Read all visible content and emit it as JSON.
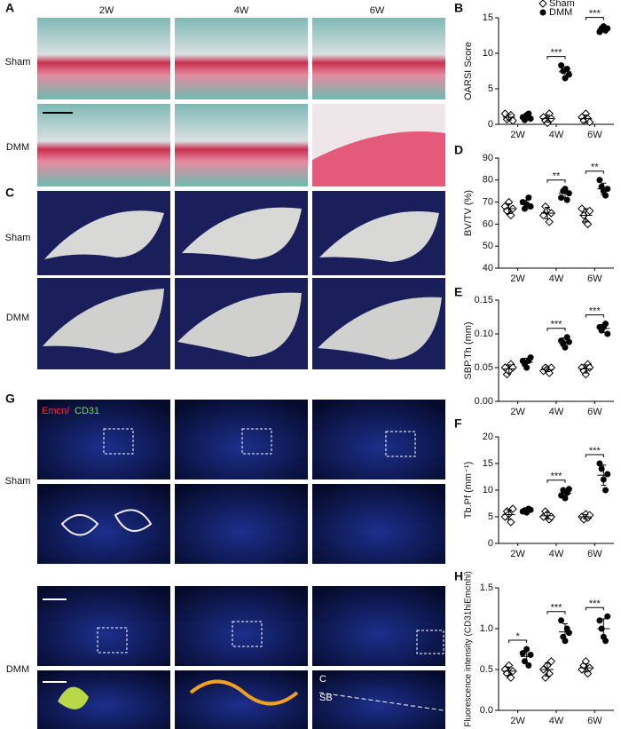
{
  "panel_labels": {
    "A": "A",
    "B": "B",
    "C": "C",
    "D": "D",
    "E": "E",
    "F": "F",
    "G": "G",
    "H": "H"
  },
  "column_labels": [
    "2W",
    "4W",
    "6W"
  ],
  "row_labels": {
    "a_sham": "Sham",
    "a_dmm": "DMM",
    "c_sham": "Sham",
    "c_dmm": "DMM",
    "g_sham": "Sham",
    "g_dmm": "DMM"
  },
  "stain_label": {
    "emcn": "Emcn/",
    "cd31": "CD31"
  },
  "image_labels": {
    "c": "C",
    "sb": "SB"
  },
  "chart_data": [
    {
      "type": "dot",
      "panel": "B",
      "ylabel": "OARSI Score",
      "categories": [
        "2W",
        "4W",
        "6W"
      ],
      "ylim": [
        0,
        15
      ],
      "yticks": [
        0,
        5,
        10,
        15
      ],
      "legend": "top",
      "series": [
        {
          "name": "Sham",
          "color": "#000000",
          "marker": "open-diamond",
          "values": [
            [
              1.5,
              0.7,
              1,
              1.3,
              0.5
            ],
            [
              1,
              0.5,
              0.2,
              1.5,
              0.8
            ],
            [
              1,
              0.5,
              1.5,
              0.8,
              0.3
            ]
          ],
          "mean": [
            1,
            0.8,
            0.8
          ],
          "sd": [
            0.4,
            0.5,
            0.5
          ]
        },
        {
          "name": "DMM",
          "color": "#000000",
          "marker": "filled-circle",
          "values": [
            [
              1,
              0.6,
              1.3,
              1.5,
              0.8
            ],
            [
              8.3,
              7.5,
              6.5,
              7.8,
              7
            ],
            [
              13,
              13.5,
              13.8,
              13.2,
              13.5
            ]
          ],
          "mean": [
            1,
            7.4,
            13.4
          ],
          "sd": [
            0.4,
            0.7,
            0.3
          ]
        }
      ],
      "significance": [
        null,
        "***",
        "***"
      ]
    },
    {
      "type": "dot",
      "panel": "D",
      "ylabel": "BV/TV (%)",
      "categories": [
        "2W",
        "4W",
        "6W"
      ],
      "ylim": [
        40,
        90
      ],
      "yticks": [
        40,
        50,
        60,
        70,
        80,
        90
      ],
      "series": [
        {
          "name": "Sham",
          "color": "#000000",
          "marker": "open-diamond",
          "values": [
            [
              68,
              66,
              70,
              64,
              67
            ],
            [
              64,
              68,
              66,
              61,
              65
            ],
            [
              67,
              64,
              61,
              60,
              66
            ]
          ],
          "mean": [
            67,
            65,
            64
          ],
          "sd": [
            2.2,
            2.6,
            3
          ]
        },
        {
          "name": "DMM",
          "color": "#000000",
          "marker": "filled-circle",
          "values": [
            [
              70,
              67,
              69,
              72,
              68
            ],
            [
              72,
              75,
              76,
              71,
              74
            ],
            [
              80,
              77,
              75,
              73,
              76
            ]
          ],
          "mean": [
            69,
            74,
            76
          ],
          "sd": [
            1.9,
            2.1,
            2.6
          ]
        }
      ],
      "significance": [
        null,
        "**",
        "**"
      ]
    },
    {
      "type": "dot",
      "panel": "E",
      "ylabel": "SBP.Th (mm)",
      "categories": [
        "2W",
        "4W",
        "6W"
      ],
      "ylim": [
        0,
        0.15
      ],
      "yticks": [
        {
          "value": 0,
          "label": "0.00"
        },
        0.05,
        {
          "value": 0.1,
          "label": "0.10"
        },
        0.15
      ],
      "series": [
        {
          "name": "Sham",
          "color": "#000000",
          "marker": "open-diamond",
          "values": [
            [
              0.05,
              0.04,
              0.045,
              0.055,
              0.05
            ],
            [
              0.045,
              0.05,
              0.048,
              0.042,
              0.05
            ],
            [
              0.05,
              0.045,
              0.04,
              0.055,
              0.05
            ]
          ],
          "mean": [
            0.048,
            0.047,
            0.048
          ],
          "sd": [
            0.006,
            0.003,
            0.006
          ]
        },
        {
          "name": "DMM",
          "color": "#000000",
          "marker": "filled-circle",
          "values": [
            [
              0.06,
              0.055,
              0.05,
              0.06,
              0.065
            ],
            [
              0.09,
              0.085,
              0.08,
              0.095,
              0.088
            ],
            [
              0.11,
              0.105,
              0.11,
              0.115,
              0.1
            ]
          ],
          "mean": [
            0.058,
            0.088,
            0.108
          ],
          "sd": [
            0.006,
            0.006,
            0.006
          ]
        }
      ],
      "significance": [
        null,
        "***",
        "***"
      ]
    },
    {
      "type": "dot",
      "panel": "F",
      "ylabel": "Tb.Pf (mm⁻¹)",
      "categories": [
        "2W",
        "4W",
        "6W"
      ],
      "ylim": [
        0,
        20
      ],
      "yticks": [
        0,
        5,
        10,
        15,
        20
      ],
      "series": [
        {
          "name": "Sham",
          "color": "#000000",
          "marker": "open-diamond",
          "values": [
            [
              5,
              6,
              5.5,
              4,
              6.5
            ],
            [
              5,
              6,
              5.5,
              4.5,
              5
            ],
            [
              5,
              4.5,
              5.5,
              4.8,
              5.3
            ]
          ],
          "mean": [
            5.4,
            5.2,
            5
          ],
          "sd": [
            0.9,
            0.6,
            0.4
          ]
        },
        {
          "name": "DMM",
          "color": "#000000",
          "marker": "filled-circle",
          "values": [
            [
              6,
              6.2,
              5.8,
              6.5,
              6.3
            ],
            [
              9,
              10,
              8.5,
              9.5,
              10.2
            ],
            [
              15,
              14,
              12,
              10,
              13
            ]
          ],
          "mean": [
            6.2,
            9.4,
            12.8
          ],
          "sd": [
            0.3,
            0.7,
            1.9
          ]
        }
      ],
      "significance": [
        null,
        "***",
        "***"
      ]
    },
    {
      "type": "dot",
      "panel": "H",
      "ylabel": "Fluorescence intensity (CD31hiEmcnhi)",
      "categories": [
        "2W",
        "4W",
        "6W"
      ],
      "ylim": [
        0,
        1.5
      ],
      "yticks": [
        {
          "value": 0,
          "label": "0.0"
        },
        0.5,
        {
          "value": 1,
          "label": "1.0"
        },
        1.5
      ],
      "series": [
        {
          "name": "Sham",
          "color": "#000000",
          "marker": "open-diamond",
          "values": [
            [
              0.5,
              0.45,
              0.55,
              0.4,
              0.48
            ],
            [
              0.5,
              0.4,
              0.55,
              0.45,
              0.6
            ],
            [
              0.5,
              0.55,
              0.6,
              0.45,
              0.52
            ]
          ],
          "mean": [
            0.48,
            0.5,
            0.52
          ],
          "sd": [
            0.05,
            0.08,
            0.05
          ]
        },
        {
          "name": "DMM",
          "color": "#000000",
          "marker": "filled-circle",
          "values": [
            [
              0.7,
              0.6,
              0.75,
              0.55,
              0.68
            ],
            [
              1.1,
              0.9,
              0.85,
              1,
              0.95
            ],
            [
              1.1,
              1,
              0.9,
              0.85,
              1.15
            ]
          ],
          "mean": [
            0.66,
            0.96,
            1
          ],
          "sd": [
            0.08,
            0.1,
            0.12
          ]
        }
      ],
      "significance": [
        "*",
        "***",
        "***"
      ]
    }
  ]
}
